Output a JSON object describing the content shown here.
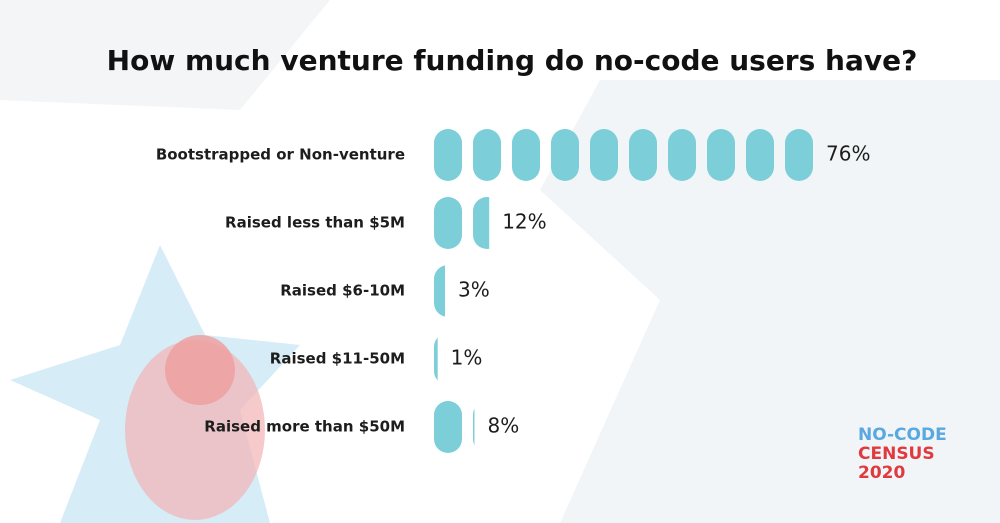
{
  "chart_data": {
    "type": "bar",
    "orientation": "horizontal",
    "title": "How much venture funding do no-code users have?",
    "categories": [
      "Bootstrapped or Non-venture",
      "Raised less than $5M",
      "Raised $6-10M",
      "Raised $11-50M",
      "Raised more than $50M"
    ],
    "values": [
      76,
      12,
      3,
      1,
      8
    ],
    "value_labels": [
      "76%",
      "12%",
      "3%",
      "1%",
      "8%"
    ],
    "color": "#7ccfd8"
  },
  "logo": {
    "line1": "NO-CODE",
    "line2": "CENSUS",
    "line3": "2020"
  }
}
